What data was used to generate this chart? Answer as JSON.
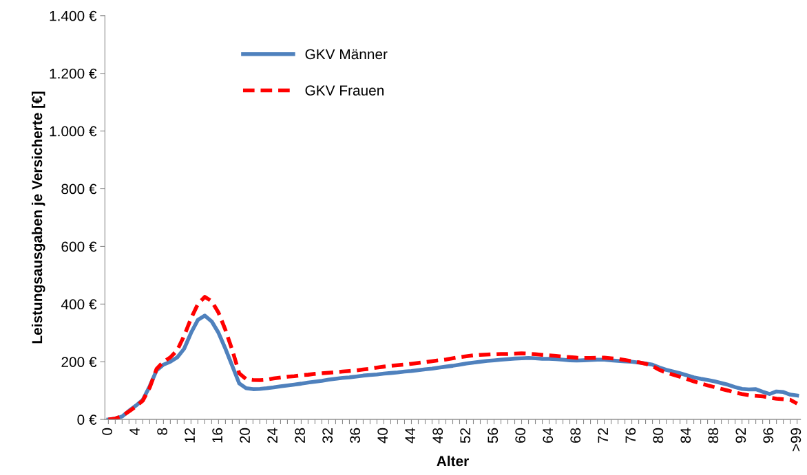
{
  "chart_data": {
    "type": "line",
    "xlabel": "Alter",
    "ylabel": "Leistungsausgaben je Versicherte [€]",
    "categories": [
      "0",
      null,
      null,
      null,
      "4",
      null,
      null,
      null,
      "8",
      null,
      null,
      null,
      "12",
      null,
      null,
      null,
      "16",
      null,
      null,
      null,
      "20",
      null,
      null,
      null,
      "24",
      null,
      null,
      null,
      "28",
      null,
      null,
      null,
      "32",
      null,
      null,
      null,
      "36",
      null,
      null,
      null,
      "40",
      null,
      null,
      null,
      "44",
      null,
      null,
      null,
      "48",
      null,
      null,
      null,
      "52",
      null,
      null,
      null,
      "56",
      null,
      null,
      null,
      "60",
      null,
      null,
      null,
      "64",
      null,
      null,
      null,
      "68",
      null,
      null,
      null,
      "72",
      null,
      null,
      null,
      "76",
      null,
      null,
      null,
      "80",
      null,
      null,
      null,
      "84",
      null,
      null,
      null,
      "88",
      null,
      null,
      null,
      "92",
      null,
      null,
      null,
      "96",
      null,
      null,
      null,
      ">99"
    ],
    "series": [
      {
        "name": "GKV Männer",
        "color": "#4f81bd",
        "line_style": "solid",
        "values": [
          0,
          3,
          10,
          30,
          48,
          68,
          115,
          170,
          190,
          200,
          215,
          245,
          300,
          345,
          360,
          340,
          300,
          245,
          185,
          125,
          108,
          105,
          106,
          108,
          111,
          115,
          118,
          121,
          124,
          128,
          131,
          134,
          138,
          141,
          144,
          146,
          149,
          152,
          154,
          156,
          159,
          161,
          163,
          166,
          168,
          171,
          174,
          176,
          180,
          183,
          186,
          190,
          194,
          197,
          200,
          203,
          205,
          207,
          209,
          211,
          212,
          213,
          212,
          210,
          210,
          209,
          207,
          205,
          204,
          205,
          206,
          207,
          207,
          205,
          203,
          201,
          200,
          197,
          194,
          190,
          180,
          172,
          166,
          160,
          153,
          146,
          141,
          137,
          132,
          126,
          120,
          112,
          106,
          104,
          105,
          96,
          88,
          97,
          95,
          86,
          83
        ]
      },
      {
        "name": "GKV Frauen",
        "color": "#ff0000",
        "line_style": "dashed",
        "values": [
          0,
          3,
          12,
          28,
          45,
          65,
          110,
          175,
          200,
          215,
          240,
          290,
          350,
          400,
          425,
          410,
          370,
          310,
          240,
          160,
          140,
          137,
          136,
          138,
          142,
          145,
          148,
          150,
          153,
          155,
          158,
          160,
          162,
          164,
          166,
          168,
          170,
          173,
          176,
          180,
          183,
          186,
          188,
          190,
          193,
          196,
          199,
          202,
          205,
          208,
          212,
          216,
          219,
          222,
          224,
          225,
          226,
          227,
          227,
          228,
          229,
          228,
          226,
          224,
          222,
          220,
          218,
          216,
          214,
          213,
          213,
          214,
          214,
          212,
          210,
          206,
          202,
          198,
          193,
          185,
          172,
          162,
          155,
          148,
          140,
          132,
          125,
          118,
          112,
          106,
          100,
          93,
          88,
          84,
          82,
          80,
          76,
          72,
          70,
          68,
          55
        ]
      }
    ],
    "ylim": [
      0,
      1400
    ],
    "yticks": [
      {
        "value": 0,
        "label": "0 €"
      },
      {
        "value": 200,
        "label": "200 €"
      },
      {
        "value": 400,
        "label": "400 €"
      },
      {
        "value": 600,
        "label": "600 €"
      },
      {
        "value": 800,
        "label": "800 €"
      },
      {
        "value": 1000,
        "label": "1.000 €"
      },
      {
        "value": 1200,
        "label": "1.200 €"
      },
      {
        "value": 1400,
        "label": "1.400 €"
      }
    ],
    "grid": false,
    "legend": "top left",
    "marker": "none"
  }
}
